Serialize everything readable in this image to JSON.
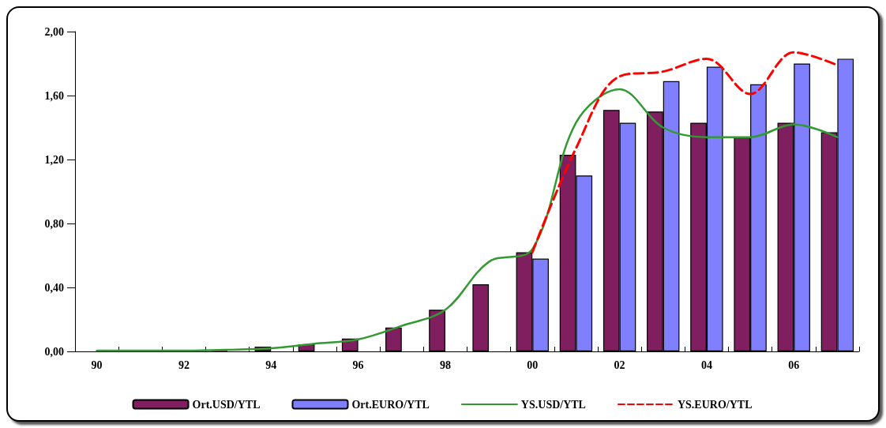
{
  "chart_data": {
    "type": "bar",
    "categories": [
      "90",
      null,
      "92",
      null,
      "94",
      null,
      "96",
      null,
      "98",
      null,
      "00",
      null,
      "02",
      null,
      "04",
      null,
      "06",
      null
    ],
    "series": [
      {
        "name": "Ort.USD/YTL",
        "color": "#7f1f5f",
        "values": [
          0,
          0,
          0,
          0.005,
          0.03,
          0.045,
          0.08,
          0.15,
          0.26,
          0.42,
          0.62,
          1.23,
          1.51,
          1.5,
          1.43,
          1.34,
          1.43,
          1.37
        ]
      },
      {
        "name": "Ort.EURO/YTL",
        "color": "#8080ff",
        "values": [
          null,
          null,
          null,
          null,
          null,
          null,
          null,
          null,
          null,
          null,
          0.58,
          1.1,
          1.43,
          1.69,
          1.78,
          1.67,
          1.8,
          1.83
        ]
      },
      {
        "name": "YS.USD/YTL",
        "type": "line",
        "color": "#339933",
        "line_style": "solid",
        "values": [
          0.005,
          0.005,
          0.005,
          0.01,
          0.02,
          0.048,
          0.075,
          0.16,
          0.26,
          0.56,
          0.64,
          1.43,
          1.64,
          1.4,
          1.34,
          1.34,
          1.42,
          1.34
        ]
      },
      {
        "name": "YS.EURO/YTL",
        "type": "line",
        "color": "#ff0000",
        "line_style": "dashed",
        "values": [
          null,
          null,
          null,
          null,
          null,
          null,
          null,
          null,
          null,
          null,
          0.62,
          1.27,
          1.72,
          1.75,
          1.83,
          1.61,
          1.87,
          1.79
        ]
      }
    ],
    "ylim": [
      0,
      2
    ],
    "yticks": [
      {
        "value": 0,
        "label": "0,00"
      },
      {
        "value": 0.4,
        "label": "0,40"
      },
      {
        "value": 0.8,
        "label": "0,80"
      },
      {
        "value": 1.2,
        "label": "1,20"
      },
      {
        "value": 1.6,
        "label": "1,60"
      },
      {
        "value": 2,
        "label": "2,00"
      }
    ],
    "grid": false,
    "legend": "bottom",
    "marker": "none"
  }
}
